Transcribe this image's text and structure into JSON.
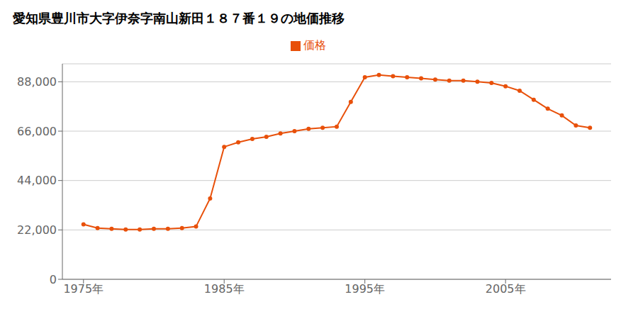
{
  "chart_data": {
    "type": "line",
    "title": "愛知県豊川市大字伊奈字南山新田１８７番１９の地価推移",
    "x": [
      1975,
      1976,
      1977,
      1978,
      1979,
      1980,
      1981,
      1982,
      1983,
      1984,
      1985,
      1986,
      1987,
      1988,
      1989,
      1990,
      1991,
      1992,
      1993,
      1994,
      1995,
      1996,
      1997,
      1998,
      1999,
      2000,
      2001,
      2002,
      2003,
      2004,
      2005,
      2006,
      2007,
      2008,
      2009,
      2010,
      2011
    ],
    "series": [
      {
        "name": "価格",
        "color": "#e8500a",
        "values": [
          24500,
          22800,
          22500,
          22200,
          22200,
          22500,
          22500,
          22800,
          23500,
          36000,
          59000,
          61000,
          62500,
          63500,
          65000,
          66000,
          67000,
          67500,
          68000,
          79000,
          90000,
          91000,
          90500,
          90000,
          89500,
          89000,
          88500,
          88500,
          88000,
          87500,
          86000,
          84000,
          80000,
          76000,
          73000,
          68500,
          67500
        ]
      }
    ],
    "xlim": [
      1973.5,
      2012.5
    ],
    "xticks": [
      {
        "value": 1975,
        "label": "1975年"
      },
      {
        "value": 1985,
        "label": "1985年"
      },
      {
        "value": 1995,
        "label": "1995年"
      },
      {
        "value": 2005,
        "label": "2005年"
      }
    ],
    "ylim": [
      0,
      96000
    ],
    "yticks": [
      0,
      {
        "value": 22000,
        "label": "22,000"
      },
      {
        "value": 44000,
        "label": "44,000"
      },
      {
        "value": 66000,
        "label": "66,000"
      },
      {
        "value": 88000,
        "label": "88,000"
      }
    ],
    "grid": "y",
    "legend": "top",
    "marker": "circle"
  }
}
